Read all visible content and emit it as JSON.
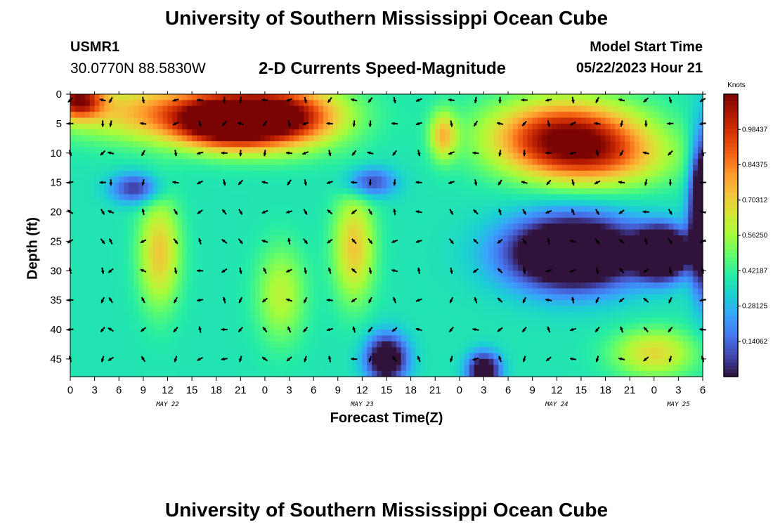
{
  "page": {
    "title": "University of Southern Mississippi Ocean Cube",
    "station_id": "USMR1",
    "station_coords": "30.0770N  88.5830W",
    "plot_title": "2-D Currents Speed-Magnitude",
    "model_start_label": "Model Start Time",
    "model_start_value": "05/22/2023 Hour 21",
    "repeated_title": "University of Southern Mississippi Ocean Cube"
  },
  "chart_data": {
    "type": "heatmap",
    "title": "2-D Currents Speed-Magnitude",
    "xlabel": "Forecast Time(Z)",
    "ylabel": "Depth (ft)",
    "x_ticks": [
      "0",
      "3",
      "6",
      "9",
      "12",
      "15",
      "18",
      "21",
      "0",
      "3",
      "6",
      "9",
      "12",
      "15",
      "18",
      "21",
      "0",
      "3",
      "6",
      "9",
      "12",
      "15",
      "18",
      "21",
      "0",
      "3",
      "6"
    ],
    "x_range_hours": [
      0,
      78
    ],
    "date_labels": [
      {
        "label": "MAY 22",
        "hour": 12
      },
      {
        "label": "MAY 23",
        "hour": 36
      },
      {
        "label": "MAY 24",
        "hour": 60
      },
      {
        "label": "MAY 25",
        "hour": 75
      }
    ],
    "y_ticks": [
      "0",
      "5",
      "10",
      "15",
      "20",
      "25",
      "30",
      "35",
      "40",
      "45"
    ],
    "y_range_ft": [
      0,
      48
    ],
    "colorbar": {
      "title": "Knots",
      "range": [
        0,
        1.125
      ],
      "tick_labels": [
        "0.98437",
        "0.84375",
        "0.70312",
        "0.56250",
        "0.42187",
        "0.28125",
        "0.14062"
      ],
      "tick_values": [
        0.98437,
        0.84375,
        0.70312,
        0.5625,
        0.42187,
        0.28125,
        0.14062
      ],
      "stops": [
        "#30123b",
        "#4145ab",
        "#4675ed",
        "#39a2fc",
        "#1bcfd4",
        "#24eca6",
        "#61fc6c",
        "#a4fc3b",
        "#d1e834",
        "#f3c63a",
        "#fe9b2d",
        "#f36315",
        "#d93806",
        "#b11901",
        "#7a0403"
      ]
    },
    "speed_features": [
      {
        "hour": 14,
        "depth": 3,
        "value": 0.82,
        "sh": 14,
        "sd": 5
      },
      {
        "hour": 19,
        "depth": 5,
        "value": 1.05,
        "sh": 6,
        "sd": 4
      },
      {
        "hour": 26,
        "depth": 4,
        "value": 1.02,
        "sh": 7,
        "sd": 5
      },
      {
        "hour": 1,
        "depth": 1,
        "value": 1.0,
        "sh": 3,
        "sd": 3
      },
      {
        "hour": 8,
        "depth": 16,
        "value": 0.05,
        "sh": 3,
        "sd": 2.5
      },
      {
        "hour": 37,
        "depth": 15,
        "value": 0.07,
        "sh": 3,
        "sd": 2.5
      },
      {
        "hour": 11,
        "depth": 27,
        "value": 0.72,
        "sh": 2.5,
        "sd": 9
      },
      {
        "hour": 35,
        "depth": 26,
        "value": 0.72,
        "sh": 2.5,
        "sd": 9
      },
      {
        "hour": 26,
        "depth": 34,
        "value": 0.6,
        "sh": 3,
        "sd": 8
      },
      {
        "hour": 61,
        "depth": 7,
        "value": 1.05,
        "sh": 9,
        "sd": 6
      },
      {
        "hour": 65,
        "depth": 11,
        "value": 0.7,
        "sh": 9,
        "sd": 5
      },
      {
        "hour": 62,
        "depth": 27,
        "value": -0.42,
        "sh": 8,
        "sd": 6
      },
      {
        "hour": 73,
        "depth": 27,
        "value": -0.48,
        "sh": 3,
        "sd": 4
      },
      {
        "hour": 72,
        "depth": 44,
        "value": 0.68,
        "sh": 5,
        "sd": 4
      },
      {
        "hour": 46,
        "depth": 7,
        "value": 0.72,
        "sh": 1.6,
        "sd": 4
      },
      {
        "hour": 39,
        "depth": 45,
        "value": -0.18,
        "sh": 2.5,
        "sd": 4
      },
      {
        "hour": 51,
        "depth": 47,
        "value": -0.15,
        "sh": 2,
        "sd": 3
      },
      {
        "hour": 78,
        "depth": 20,
        "value": -0.4,
        "sh": 1.5,
        "sd": 12
      }
    ],
    "direction_field": {
      "shallow_deg": 135,
      "deep_deg": 200,
      "columns_hours": [
        0,
        4,
        5,
        9,
        13,
        16,
        19,
        21,
        24,
        27,
        29,
        32,
        35,
        37,
        40,
        43,
        47,
        50,
        53,
        56,
        59,
        62,
        65,
        68,
        71,
        74,
        78
      ]
    }
  }
}
